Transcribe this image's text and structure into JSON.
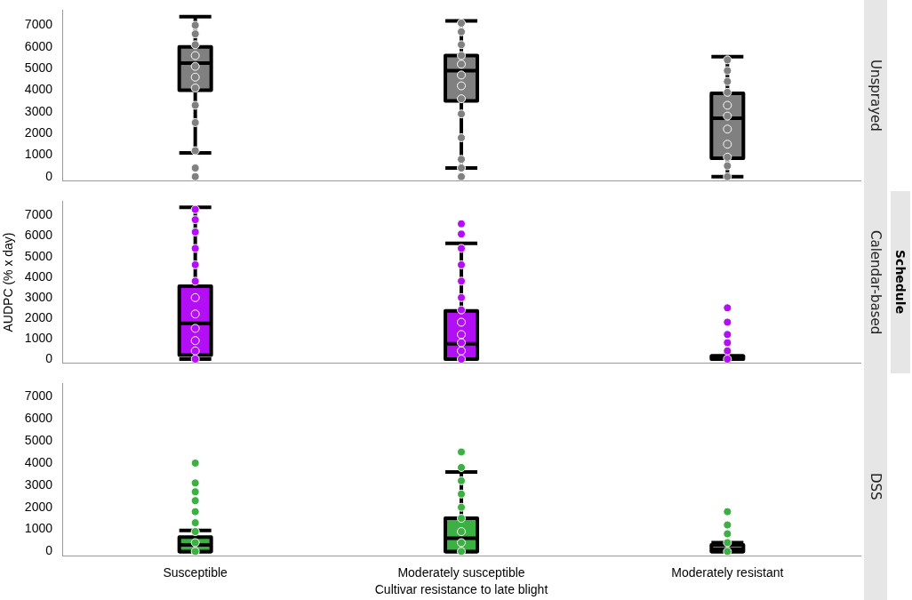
{
  "chart_data": [
    {
      "type": "box",
      "title": "Unsprayed",
      "categories": [
        "Susceptible",
        "Moderately susceptible",
        "Moderately resistant"
      ],
      "ylim": [
        -200,
        7700
      ],
      "yticks": [
        0,
        1000,
        2000,
        3000,
        4000,
        5000,
        6000,
        7000
      ],
      "tick_labels": "y",
      "series": [
        {
          "type": "scatter",
          "color": "#808080",
          "marker": "circle",
          "x": [
            "Susceptible",
            "Susceptible",
            "Susceptible",
            "Susceptible",
            "Susceptible",
            "Susceptible",
            "Susceptible",
            "Susceptible",
            "Susceptible",
            "Susceptible",
            "Susceptible",
            "Susceptible",
            "Moderately susceptible",
            "Moderately susceptible",
            "Moderately susceptible",
            "Moderately susceptible",
            "Moderately susceptible",
            "Moderately susceptible",
            "Moderately susceptible",
            "Moderately susceptible",
            "Moderately susceptible",
            "Moderately susceptible",
            "Moderately susceptible",
            "Moderately susceptible",
            "Moderately susceptible",
            "Moderately resistant",
            "Moderately resistant",
            "Moderately resistant",
            "Moderately resistant",
            "Moderately resistant",
            "Moderately resistant",
            "Moderately resistant",
            "Moderately resistant",
            "Moderately resistant",
            "Moderately resistant",
            "Moderately resistant"
          ],
          "values": [
            0,
            400,
            1200,
            2500,
            3300,
            4100,
            4600,
            5100,
            5600,
            6100,
            6600,
            7000,
            0,
            400,
            800,
            1800,
            2900,
            3600,
            4200,
            4700,
            5200,
            5600,
            6100,
            6700,
            7100,
            0,
            500,
            900,
            1500,
            2200,
            2800,
            3300,
            3900,
            4400,
            4900,
            5400
          ]
        },
        {
          "type": "box",
          "color": "#808080",
          "boxes": [
            {
              "low": 1100,
              "q1": 4000,
              "median": 5250,
              "q3": 6000,
              "high": 7400
            },
            {
              "low": 400,
              "q1": 3500,
              "median": 4900,
              "q3": 5600,
              "high": 7200
            },
            {
              "low": 0,
              "q1": 850,
              "median": 2700,
              "q3": 3850,
              "high": 5550
            }
          ]
        }
      ]
    },
    {
      "type": "box",
      "title": "Calendar-based",
      "ylabel": "AUDPC (% x day)",
      "annotations": [
        "Schedule"
      ],
      "categories": [
        "Susceptible",
        "Moderately susceptible",
        "Moderately resistant"
      ],
      "ylim": [
        -200,
        7700
      ],
      "yticks": [
        0,
        1000,
        2000,
        3000,
        4000,
        5000,
        6000,
        7000
      ],
      "tick_labels": "y",
      "series": [
        {
          "type": "scatter",
          "color": "#b30ff5",
          "marker": "circle",
          "x": [
            "Susceptible",
            "Susceptible",
            "Susceptible",
            "Susceptible",
            "Susceptible",
            "Susceptible",
            "Susceptible",
            "Susceptible",
            "Susceptible",
            "Susceptible",
            "Susceptible",
            "Susceptible",
            "Moderately susceptible",
            "Moderately susceptible",
            "Moderately susceptible",
            "Moderately susceptible",
            "Moderately susceptible",
            "Moderately susceptible",
            "Moderately susceptible",
            "Moderately susceptible",
            "Moderately susceptible",
            "Moderately susceptible",
            "Moderately susceptible",
            "Moderately susceptible",
            "Moderately resistant",
            "Moderately resistant",
            "Moderately resistant",
            "Moderately resistant",
            "Moderately resistant",
            "Moderately resistant"
          ],
          "values": [
            0,
            400,
            900,
            1500,
            2200,
            3000,
            3800,
            4600,
            5400,
            6200,
            6800,
            7300,
            0,
            400,
            800,
            1200,
            1800,
            2400,
            3000,
            3800,
            4600,
            5400,
            6100,
            6600,
            0,
            400,
            800,
            1200,
            1800,
            2500
          ]
        },
        {
          "type": "box",
          "color": "#b30ff5",
          "boxes": [
            {
              "low": 0,
              "q1": 200,
              "median": 1750,
              "q3": 3550,
              "high": 7400
            },
            {
              "low": 0,
              "q1": 0,
              "median": 750,
              "q3": 2350,
              "high": 5650
            },
            {
              "low": 0,
              "q1": 0,
              "median": 0,
              "q3": 150,
              "high": 150
            }
          ]
        }
      ]
    },
    {
      "type": "box",
      "title": "DSS",
      "xlabel": "Cultivar resistance to late blight",
      "categories": [
        "Susceptible",
        "Moderately susceptible",
        "Moderately resistant"
      ],
      "ylim": [
        -200,
        7600
      ],
      "yticks": [
        0,
        1000,
        2000,
        3000,
        4000,
        5000,
        6000,
        7000
      ],
      "series": [
        {
          "type": "scatter",
          "color": "#3cb043",
          "marker": "circle",
          "x": [
            "Susceptible",
            "Susceptible",
            "Susceptible",
            "Susceptible",
            "Susceptible",
            "Susceptible",
            "Susceptible",
            "Susceptible",
            "Susceptible",
            "Moderately susceptible",
            "Moderately susceptible",
            "Moderately susceptible",
            "Moderately susceptible",
            "Moderately susceptible",
            "Moderately susceptible",
            "Moderately susceptible",
            "Moderately susceptible",
            "Moderately susceptible",
            "Moderately resistant",
            "Moderately resistant",
            "Moderately resistant",
            "Moderately resistant",
            "Moderately resistant"
          ],
          "values": [
            0,
            400,
            900,
            1300,
            1800,
            2300,
            2700,
            3100,
            4000,
            0,
            400,
            900,
            1500,
            2000,
            2600,
            3200,
            3800,
            4500,
            0,
            400,
            800,
            1200,
            1800
          ]
        },
        {
          "type": "box",
          "color": "#3cb043",
          "boxes": [
            {
              "low": 0,
              "q1": 0,
              "median": 300,
              "q3": 650,
              "high": 950
            },
            {
              "low": 0,
              "q1": 0,
              "median": 600,
              "q3": 1500,
              "high": 3600
            },
            {
              "low": 0,
              "q1": 0,
              "median": 100,
              "q3": 300,
              "high": 400
            }
          ]
        }
      ]
    }
  ]
}
